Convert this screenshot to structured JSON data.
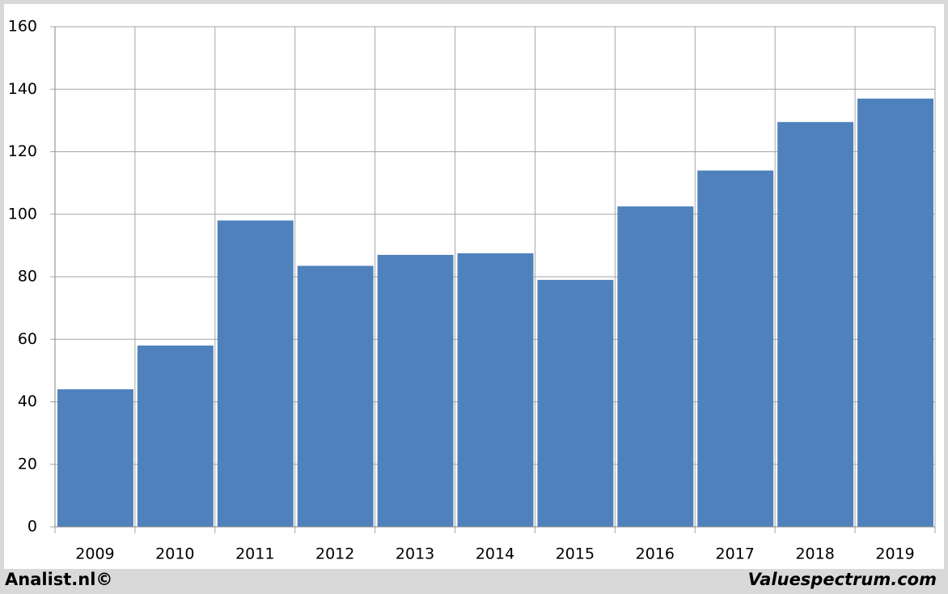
{
  "chart_data": {
    "type": "bar",
    "categories": [
      "2009",
      "2010",
      "2011",
      "2012",
      "2013",
      "2014",
      "2015",
      "2016",
      "2017",
      "2018",
      "2019"
    ],
    "values": [
      44,
      58,
      98,
      83.5,
      87,
      87.5,
      79,
      102.5,
      114,
      129.5,
      137
    ],
    "color": "#4f81bd",
    "ylim": [
      0,
      160
    ],
    "yticks": [
      0,
      20,
      40,
      60,
      80,
      100,
      120,
      140,
      160
    ],
    "grid": true,
    "footer_left": "Analist.nl©",
    "footer_right": "Valuespectrum.com"
  }
}
